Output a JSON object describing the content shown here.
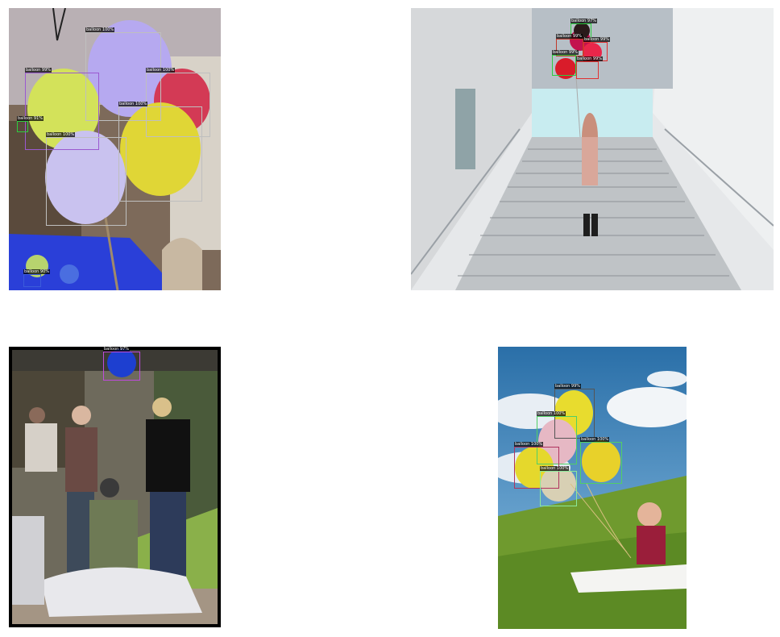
{
  "panels": [
    {
      "detections": [
        {
          "label": "balloon 100%",
          "color": "#bfbfbf"
        },
        {
          "label": "balloon 99%",
          "color": "#9b59d0"
        },
        {
          "label": "balloon 100%",
          "color": "#bfbfbf"
        },
        {
          "label": "balloon 100%",
          "color": "#bfbfbf"
        },
        {
          "label": "balloon 100%",
          "color": "#bfbfbf"
        },
        {
          "label": "balloon 91%",
          "color": "#2ecc40"
        },
        {
          "label": "balloon 90%",
          "color": "#3b5bdb"
        }
      ]
    },
    {
      "detections": [
        {
          "label": "balloon 97%",
          "color": "#2ecc40"
        },
        {
          "label": "balloon 99%",
          "color": "#c0392b"
        },
        {
          "label": "balloon 99%",
          "color": "#e03131"
        },
        {
          "label": "balloon 99%",
          "color": "#2ecc40"
        },
        {
          "label": "balloon 99%",
          "color": "#e03131"
        }
      ]
    },
    {
      "detections": [
        {
          "label": "balloon 97%",
          "color": "#be4bdb"
        }
      ]
    },
    {
      "detections": [
        {
          "label": "balloon 99%",
          "color": "#555555"
        },
        {
          "label": "balloon 100%",
          "color": "#51cf66"
        },
        {
          "label": "balloon 100%",
          "color": "#b0345f"
        },
        {
          "label": "balloon 100%",
          "color": "#51cf66"
        },
        {
          "label": "balloon 100%",
          "color": "#8ce99a"
        }
      ]
    }
  ]
}
